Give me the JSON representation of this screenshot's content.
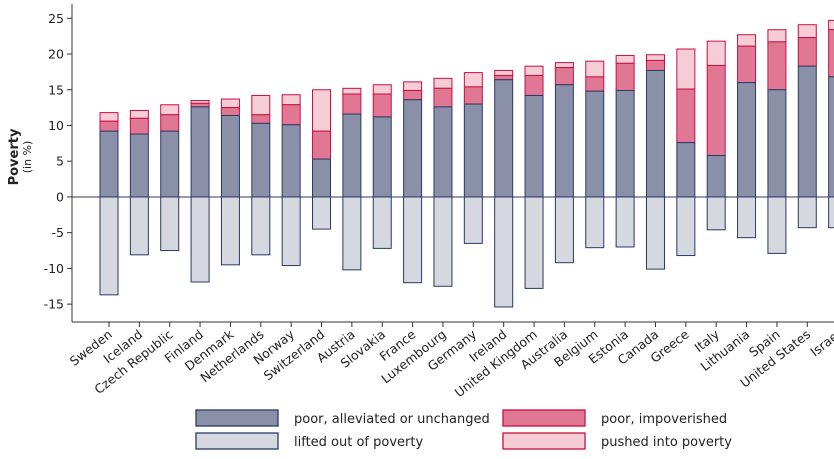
{
  "chart_data": {
    "type": "bar",
    "ylabel": "Poverty",
    "ylabel_sub": "(in %)",
    "ylim": [
      -17.5,
      27
    ],
    "yticks": [
      -15,
      -10,
      -5,
      0,
      5,
      10,
      15,
      20,
      25
    ],
    "grid": false,
    "legend_position": "bottom",
    "categories": [
      "Sweden",
      "Iceland",
      "Czech Republic",
      "Finland",
      "Denmark",
      "Netherlands",
      "Norway",
      "Switzerland",
      "Austria",
      "Slovakia",
      "France",
      "Luxembourg",
      "Germany",
      "Ireland",
      "United Kingdom",
      "Australia",
      "Belgium",
      "Estonia",
      "Canada",
      "Greece",
      "Italy",
      "Lithuania",
      "Spain",
      "United States",
      "Israel"
    ],
    "series": [
      {
        "name": "poor, alleviated or unchanged",
        "color": "#8a90a8",
        "stroke": "#2b3a66",
        "values": [
          9.2,
          8.8,
          9.2,
          12.6,
          11.4,
          10.3,
          10.1,
          5.3,
          11.6,
          11.2,
          13.6,
          12.6,
          13.0,
          16.4,
          14.2,
          15.7,
          14.8,
          14.9,
          17.7,
          7.6,
          5.8,
          16.0,
          15.0,
          18.3,
          16.8
        ]
      },
      {
        "name": "poor, impoverished",
        "color": "#e07895",
        "stroke": "#c8103e",
        "values": [
          1.4,
          2.2,
          2.3,
          0.5,
          1.1,
          1.2,
          2.8,
          3.9,
          2.8,
          3.2,
          1.3,
          2.6,
          2.4,
          0.6,
          2.8,
          2.4,
          2.0,
          3.8,
          1.4,
          7.5,
          12.6,
          5.1,
          6.7,
          4.0,
          6.6
        ]
      },
      {
        "name": "pushed into poverty",
        "color": "#f6ccd7",
        "stroke": "#c8103e",
        "values": [
          1.2,
          1.1,
          1.4,
          0.4,
          1.2,
          2.7,
          1.4,
          5.8,
          0.8,
          1.3,
          1.2,
          1.4,
          2.0,
          0.7,
          1.3,
          0.7,
          2.2,
          1.1,
          0.8,
          5.6,
          3.4,
          1.6,
          1.7,
          1.8,
          1.3
        ]
      },
      {
        "name": "lifted out of poverty",
        "color": "#d6d8e0",
        "stroke": "#2b3a66",
        "values": [
          -13.7,
          -8.1,
          -7.5,
          -11.9,
          -9.5,
          -8.1,
          -9.6,
          -4.5,
          -10.2,
          -7.2,
          -12.0,
          -12.5,
          -6.5,
          -15.4,
          -12.8,
          -9.2,
          -7.1,
          -7.0,
          -10.1,
          -8.2,
          -4.6,
          -5.7,
          -7.9,
          -4.3,
          -4.3
        ]
      }
    ],
    "legend": [
      {
        "label": "poor, alleviated or unchanged",
        "color": "#8a90a8",
        "stroke": "#2b3a66"
      },
      {
        "label": "poor, impoverished",
        "color": "#e07895",
        "stroke": "#c8103e"
      },
      {
        "label": "lifted out of poverty",
        "color": "#d6d8e0",
        "stroke": "#2b3a66"
      },
      {
        "label": "pushed into poverty",
        "color": "#f6ccd7",
        "stroke": "#c8103e"
      }
    ]
  }
}
